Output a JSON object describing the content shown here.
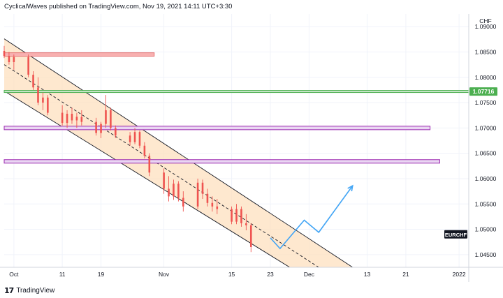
{
  "header": {
    "publisher": "CyclicalWaves",
    "published_text": "published on TradingView.com,",
    "timestamp": "Nov 19, 2021 14:11 UTC+3:30"
  },
  "footer": {
    "logo_text": "17",
    "brand": "TradingView"
  },
  "colors": {
    "candle": "#ef5350",
    "channel_fill": "#fde0bf",
    "current_price_bg": "#4caf50",
    "zone_border_pink": "#e57373",
    "zone_border_purple": "#9c27b0",
    "projection": "#42a5f5"
  },
  "chart_data": {
    "type": "candlestick",
    "symbol": "EURCHF",
    "currency_label": "CHF",
    "current_price_label": "1.07716",
    "y_ticks": [
      "1.09000",
      "1.08500",
      "1.08000",
      "1.07500",
      "1.07000",
      "1.06500",
      "1.06000",
      "1.05500",
      "1.05000",
      "1.04500"
    ],
    "y_tick_values": [
      1.09,
      1.085,
      1.08,
      1.075,
      1.07,
      1.065,
      1.06,
      1.055,
      1.05,
      1.045
    ],
    "ylim": [
      1.0425,
      1.0925
    ],
    "x_ticks": [
      "Oct",
      "11",
      "19",
      "Nov",
      "15",
      "23",
      "Dec",
      "13",
      "21",
      "2022"
    ],
    "x_tick_dates": [
      "2021-10-01",
      "2021-10-11",
      "2021-10-19",
      "2021-11-01",
      "2021-11-15",
      "2021-11-23",
      "2021-12-01",
      "2021-12-13",
      "2021-12-21",
      "2022-01-01"
    ],
    "xlim": [
      "2021-09-29",
      "2022-01-03"
    ],
    "horizontal_lines": [
      {
        "type": "zone",
        "price": 1.0845,
        "end": "2021-10-30",
        "style": "pink"
      },
      {
        "type": "line",
        "price": 1.0772,
        "end": "2022-01-03",
        "style": "green"
      },
      {
        "type": "zone",
        "price": 1.07,
        "end": "2021-12-26",
        "style": "purple"
      },
      {
        "type": "zone",
        "price": 1.0634,
        "end": "2021-12-28",
        "style": "purple"
      }
    ],
    "channel": {
      "upper": {
        "start": [
          "2021-09-29",
          1.0876
        ],
        "end": [
          "2021-12-10",
          1.0425
        ]
      },
      "lower": {
        "start": [
          "2021-09-29",
          1.0773
        ],
        "end": [
          "2021-11-27",
          1.0425
        ]
      },
      "mid": {
        "start": [
          "2021-09-29",
          1.0825
        ],
        "end": [
          "2021-12-03",
          1.0425
        ]
      }
    },
    "projection": [
      [
        "2021-11-23",
        1.0483
      ],
      [
        "2021-11-25",
        1.0462
      ],
      [
        "2021-11-30",
        1.0518
      ],
      [
        "2021-12-03",
        1.0494
      ],
      [
        "2021-12-10",
        1.0586
      ]
    ],
    "ohlc": [
      [
        "2021-09-29",
        1.0852,
        1.0862,
        1.0838,
        1.0842
      ],
      [
        "2021-09-30",
        1.0842,
        1.085,
        1.0825,
        1.083
      ],
      [
        "2021-10-01",
        1.083,
        1.0845,
        1.0815,
        1.084
      ],
      [
        "2021-10-04",
        1.084,
        1.0845,
        1.08,
        1.0805
      ],
      [
        "2021-10-05",
        1.0805,
        1.0812,
        1.0775,
        1.078
      ],
      [
        "2021-10-06",
        1.078,
        1.08,
        1.0745,
        1.075
      ],
      [
        "2021-10-07",
        1.075,
        1.077,
        1.0735,
        1.076
      ],
      [
        "2021-10-08",
        1.076,
        1.0765,
        1.0725,
        1.073
      ],
      [
        "2021-10-11",
        1.073,
        1.0745,
        1.0705,
        1.071
      ],
      [
        "2021-10-12",
        1.071,
        1.0735,
        1.07,
        1.0728
      ],
      [
        "2021-10-13",
        1.0728,
        1.074,
        1.0708,
        1.0715
      ],
      [
        "2021-10-14",
        1.0715,
        1.073,
        1.07,
        1.0722
      ],
      [
        "2021-10-15",
        1.0722,
        1.0735,
        1.0705,
        1.0712
      ],
      [
        "2021-10-18",
        1.0712,
        1.072,
        1.0685,
        1.069
      ],
      [
        "2021-10-19",
        1.069,
        1.0712,
        1.068,
        1.0708
      ],
      [
        "2021-10-20",
        1.0708,
        1.0765,
        1.07,
        1.0735
      ],
      [
        "2021-10-21",
        1.0735,
        1.074,
        1.0695,
        1.07
      ],
      [
        "2021-10-22",
        1.07,
        1.0705,
        1.068,
        1.0685
      ],
      [
        "2021-10-25",
        1.0685,
        1.0692,
        1.0665,
        1.0672
      ],
      [
        "2021-10-26",
        1.0672,
        1.07,
        1.0668,
        1.0692
      ],
      [
        "2021-10-27",
        1.0692,
        1.0695,
        1.066,
        1.0665
      ],
      [
        "2021-10-28",
        1.0665,
        1.0672,
        1.064,
        1.0645
      ],
      [
        "2021-10-29",
        1.0645,
        1.065,
        1.0605,
        1.0612
      ],
      [
        "2021-11-01",
        1.0612,
        1.062,
        1.057,
        1.058
      ],
      [
        "2021-11-02",
        1.058,
        1.0605,
        1.0555,
        1.0565
      ],
      [
        "2021-11-03",
        1.0565,
        1.0598,
        1.0558,
        1.059
      ],
      [
        "2021-11-04",
        1.059,
        1.0595,
        1.0555,
        1.0562
      ],
      [
        "2021-11-05",
        1.0562,
        1.0575,
        1.0535,
        1.0545
      ],
      [
        "2021-11-08",
        1.0545,
        1.06,
        1.054,
        1.0592
      ],
      [
        "2021-11-09",
        1.0592,
        1.0598,
        1.056,
        1.057
      ],
      [
        "2021-11-10",
        1.057,
        1.058,
        1.0545,
        1.0552
      ],
      [
        "2021-11-11",
        1.0552,
        1.0565,
        1.0535,
        1.0545
      ],
      [
        "2021-11-12",
        1.0545,
        1.056,
        1.053,
        1.054
      ],
      [
        "2021-11-15",
        1.054,
        1.0545,
        1.051,
        1.0515
      ],
      [
        "2021-11-16",
        1.0515,
        1.055,
        1.051,
        1.054
      ],
      [
        "2021-11-17",
        1.054,
        1.0545,
        1.0505,
        1.0512
      ],
      [
        "2021-11-18",
        1.0512,
        1.053,
        1.0498,
        1.0508
      ],
      [
        "2021-11-19",
        1.0508,
        1.0512,
        1.0455,
        1.0465
      ]
    ]
  }
}
